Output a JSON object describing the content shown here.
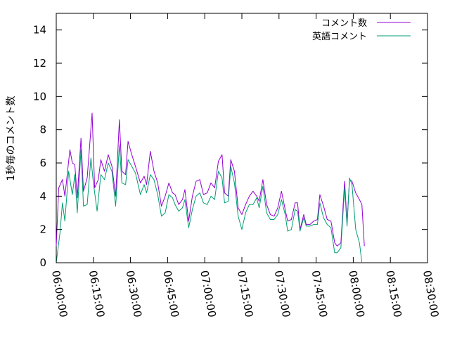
{
  "chart_data": {
    "type": "line",
    "title": "",
    "xlabel": "",
    "ylabel": "1秒毎のコメント数",
    "xlim": [
      "06:00:00",
      "08:30:00"
    ],
    "ylim": [
      0,
      15
    ],
    "x_ticks": [
      "06:00:00",
      "06:15:00",
      "06:30:00",
      "06:45:00",
      "07:00:00",
      "07:15:00",
      "07:30:00",
      "07:45:00",
      "08:00:00",
      "08:15:00",
      "08:30:00"
    ],
    "y_ticks": [
      0,
      2,
      4,
      6,
      8,
      10,
      12,
      14
    ],
    "grid": false,
    "legend_position": "top-right",
    "series": [
      {
        "name": "コメント数",
        "color": "#9400d3",
        "points": [
          [
            "06:00:00",
            1.0
          ],
          [
            "06:01:00",
            4.5
          ],
          [
            "06:02:30",
            5.0
          ],
          [
            "06:03:30",
            4.0
          ],
          [
            "06:05:30",
            6.8
          ],
          [
            "06:06:30",
            6.0
          ],
          [
            "06:07:30",
            5.9
          ],
          [
            "06:08:30",
            3.9
          ],
          [
            "06:10:00",
            7.5
          ],
          [
            "06:11:00",
            4.3
          ],
          [
            "06:12:30",
            5.1
          ],
          [
            "06:14:30",
            9.0
          ],
          [
            "06:15:30",
            4.5
          ],
          [
            "06:17:00",
            5.0
          ],
          [
            "06:18:00",
            6.2
          ],
          [
            "06:19:30",
            5.5
          ],
          [
            "06:21:00",
            6.5
          ],
          [
            "06:22:30",
            5.8
          ],
          [
            "06:24:00",
            4.0
          ],
          [
            "06:25:30",
            8.6
          ],
          [
            "06:26:30",
            5.5
          ],
          [
            "06:28:00",
            5.3
          ],
          [
            "06:29:00",
            7.3
          ],
          [
            "06:30:30",
            6.5
          ],
          [
            "06:32:00",
            5.8
          ],
          [
            "06:34:00",
            4.8
          ],
          [
            "06:35:30",
            5.2
          ],
          [
            "06:36:30",
            4.7
          ],
          [
            "06:38:00",
            6.7
          ],
          [
            "06:39:30",
            5.5
          ],
          [
            "06:41:00",
            4.8
          ],
          [
            "06:42:30",
            3.4
          ],
          [
            "06:44:00",
            4.0
          ],
          [
            "06:45:30",
            4.8
          ],
          [
            "06:47:00",
            4.2
          ],
          [
            "06:48:00",
            4.1
          ],
          [
            "06:49:30",
            3.5
          ],
          [
            "06:51:00",
            3.8
          ],
          [
            "06:52:00",
            4.4
          ],
          [
            "06:53:30",
            2.5
          ],
          [
            "06:55:00",
            4.0
          ],
          [
            "06:56:30",
            4.9
          ],
          [
            "06:58:00",
            5.0
          ],
          [
            "06:59:30",
            4.1
          ],
          [
            "07:01:00",
            4.2
          ],
          [
            "07:02:30",
            4.8
          ],
          [
            "07:04:00",
            4.5
          ],
          [
            "07:05:30",
            6.1
          ],
          [
            "07:07:00",
            6.5
          ],
          [
            "07:08:00",
            4.2
          ],
          [
            "07:09:30",
            4.0
          ],
          [
            "07:10:30",
            6.2
          ],
          [
            "07:12:00",
            5.5
          ],
          [
            "07:13:30",
            3.3
          ],
          [
            "07:15:00",
            2.9
          ],
          [
            "07:16:30",
            3.5
          ],
          [
            "07:18:00",
            4.0
          ],
          [
            "07:19:30",
            4.3
          ],
          [
            "07:21:00",
            4.0
          ],
          [
            "07:22:00",
            3.7
          ],
          [
            "07:23:30",
            5.0
          ],
          [
            "07:25:00",
            3.5
          ],
          [
            "07:26:30",
            2.9
          ],
          [
            "07:28:00",
            2.8
          ],
          [
            "07:29:30",
            3.3
          ],
          [
            "07:31:00",
            4.3
          ],
          [
            "07:32:30",
            3.2
          ],
          [
            "07:33:30",
            2.5
          ],
          [
            "07:35:00",
            2.6
          ],
          [
            "07:36:30",
            3.6
          ],
          [
            "07:37:30",
            3.6
          ],
          [
            "07:38:30",
            2.0
          ],
          [
            "07:40:00",
            2.9
          ],
          [
            "07:41:00",
            2.3
          ],
          [
            "07:42:30",
            2.3
          ],
          [
            "07:44:00",
            2.5
          ],
          [
            "07:45:30",
            2.6
          ],
          [
            "07:46:30",
            4.1
          ],
          [
            "07:48:00",
            3.4
          ],
          [
            "07:49:30",
            2.6
          ],
          [
            "07:51:00",
            2.5
          ],
          [
            "07:52:30",
            1.2
          ],
          [
            "07:53:30",
            1.0
          ],
          [
            "07:55:00",
            1.2
          ],
          [
            "07:56:30",
            4.9
          ],
          [
            "07:57:30",
            2.4
          ],
          [
            "07:58:30",
            5.0
          ],
          [
            "07:59:30",
            4.9
          ],
          [
            "08:01:00",
            4.2
          ],
          [
            "08:02:30",
            3.8
          ],
          [
            "08:03:30",
            3.5
          ],
          [
            "08:04:30",
            1.0
          ]
        ]
      },
      {
        "name": "英語コメント",
        "color": "#009e73",
        "points": [
          [
            "06:00:00",
            0.0
          ],
          [
            "06:01:30",
            1.8
          ],
          [
            "06:02:30",
            3.6
          ],
          [
            "06:03:30",
            2.5
          ],
          [
            "06:05:00",
            5.5
          ],
          [
            "06:06:30",
            4.1
          ],
          [
            "06:07:30",
            5.3
          ],
          [
            "06:08:30",
            3.0
          ],
          [
            "06:10:00",
            6.8
          ],
          [
            "06:11:00",
            3.4
          ],
          [
            "06:12:30",
            3.5
          ],
          [
            "06:14:00",
            6.3
          ],
          [
            "06:15:00",
            4.8
          ],
          [
            "06:16:30",
            3.1
          ],
          [
            "06:18:00",
            5.3
          ],
          [
            "06:19:30",
            5.0
          ],
          [
            "06:21:00",
            6.0
          ],
          [
            "06:22:30",
            5.5
          ],
          [
            "06:24:00",
            3.4
          ],
          [
            "06:25:30",
            7.1
          ],
          [
            "06:26:30",
            4.8
          ],
          [
            "06:28:00",
            4.7
          ],
          [
            "06:29:00",
            6.2
          ],
          [
            "06:30:30",
            5.8
          ],
          [
            "06:32:00",
            5.4
          ],
          [
            "06:34:00",
            4.1
          ],
          [
            "06:35:30",
            4.7
          ],
          [
            "06:36:30",
            4.2
          ],
          [
            "06:38:00",
            5.3
          ],
          [
            "06:39:30",
            5.0
          ],
          [
            "06:41:00",
            4.1
          ],
          [
            "06:42:30",
            2.8
          ],
          [
            "06:44:00",
            3.0
          ],
          [
            "06:45:30",
            4.1
          ],
          [
            "06:47:00",
            3.9
          ],
          [
            "06:48:00",
            3.5
          ],
          [
            "06:49:30",
            3.1
          ],
          [
            "06:51:00",
            3.3
          ],
          [
            "06:52:00",
            3.8
          ],
          [
            "06:53:30",
            2.1
          ],
          [
            "06:55:00",
            3.2
          ],
          [
            "06:56:30",
            4.0
          ],
          [
            "06:58:00",
            4.2
          ],
          [
            "06:59:30",
            3.6
          ],
          [
            "07:01:00",
            3.5
          ],
          [
            "07:02:30",
            4.0
          ],
          [
            "07:04:00",
            3.8
          ],
          [
            "07:05:30",
            5.5
          ],
          [
            "07:07:00",
            5.1
          ],
          [
            "07:08:00",
            3.6
          ],
          [
            "07:09:30",
            3.7
          ],
          [
            "07:10:30",
            5.8
          ],
          [
            "07:12:00",
            4.8
          ],
          [
            "07:13:30",
            2.8
          ],
          [
            "07:15:00",
            2.0
          ],
          [
            "07:16:30",
            3.0
          ],
          [
            "07:18:00",
            3.5
          ],
          [
            "07:19:30",
            3.5
          ],
          [
            "07:21:00",
            3.9
          ],
          [
            "07:22:00",
            3.3
          ],
          [
            "07:23:30",
            4.6
          ],
          [
            "07:25:00",
            3.0
          ],
          [
            "07:26:30",
            2.6
          ],
          [
            "07:28:00",
            2.6
          ],
          [
            "07:29:30",
            2.9
          ],
          [
            "07:31:00",
            3.8
          ],
          [
            "07:32:30",
            2.9
          ],
          [
            "07:33:30",
            1.9
          ],
          [
            "07:35:00",
            2.0
          ],
          [
            "07:36:30",
            3.2
          ],
          [
            "07:37:30",
            3.1
          ],
          [
            "07:38:30",
            1.9
          ],
          [
            "07:40:00",
            2.7
          ],
          [
            "07:41:00",
            2.2
          ],
          [
            "07:42:30",
            2.2
          ],
          [
            "07:44:00",
            2.3
          ],
          [
            "07:45:30",
            2.3
          ],
          [
            "07:46:30",
            3.6
          ],
          [
            "07:48:00",
            2.7
          ],
          [
            "07:49:30",
            2.3
          ],
          [
            "07:51:00",
            2.1
          ],
          [
            "07:52:30",
            0.6
          ],
          [
            "07:53:30",
            0.6
          ],
          [
            "07:55:00",
            0.9
          ],
          [
            "07:56:30",
            4.5
          ],
          [
            "07:57:30",
            2.2
          ],
          [
            "07:58:30",
            5.1
          ],
          [
            "07:59:30",
            4.7
          ],
          [
            "08:01:00",
            2.0
          ],
          [
            "08:02:30",
            1.2
          ],
          [
            "08:03:30",
            0.0
          ]
        ]
      }
    ]
  }
}
